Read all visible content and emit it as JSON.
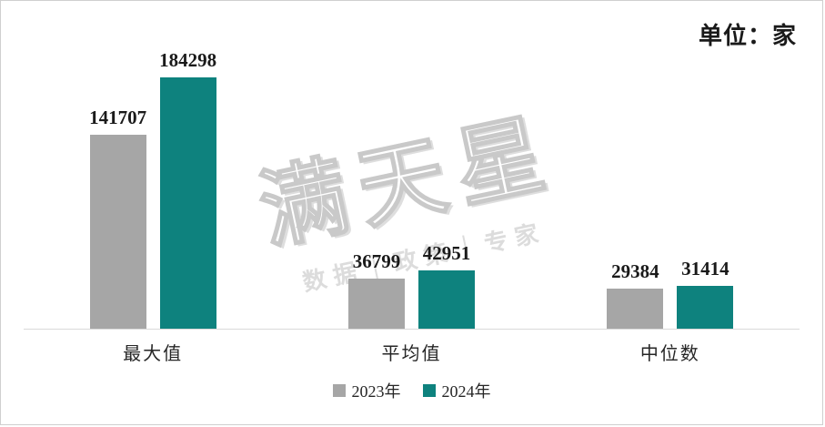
{
  "unit_label": "单位：家",
  "watermark": {
    "title": "满天星",
    "subtitle": "数据｜政策｜专家"
  },
  "chart_data": {
    "type": "bar",
    "categories": [
      "最大值",
      "平均值",
      "中位数"
    ],
    "series": [
      {
        "name": "2023年",
        "color": "#a6a6a6",
        "values": [
          141707,
          36799,
          29384
        ]
      },
      {
        "name": "2024年",
        "color": "#0e827e",
        "values": [
          184298,
          42951,
          31414
        ]
      }
    ],
    "title": "",
    "xlabel": "",
    "ylabel": "",
    "ylim": [
      0,
      200000
    ],
    "grid": false,
    "legend_position": "bottom",
    "data_labels": true
  }
}
